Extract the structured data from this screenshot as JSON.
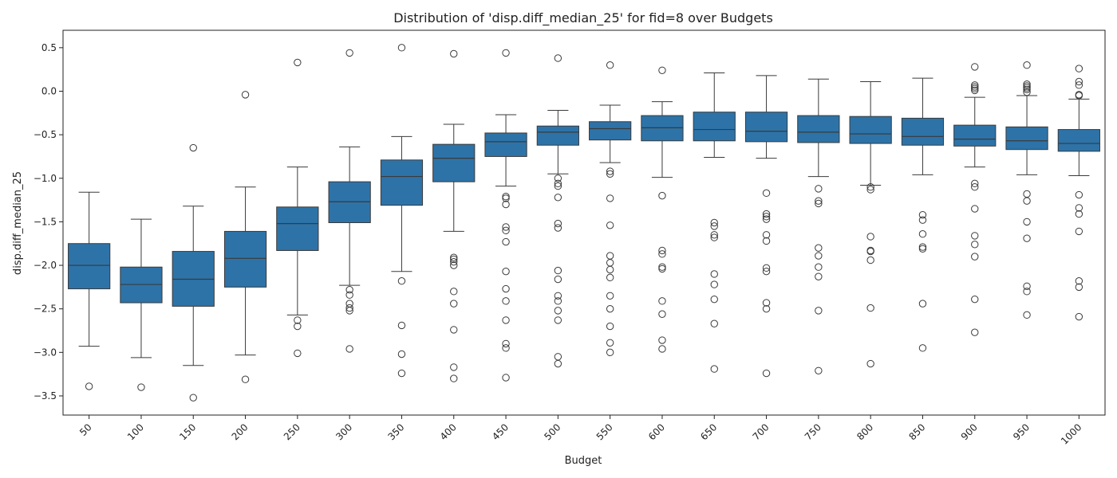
{
  "chart_data": {
    "type": "box",
    "title": "Distribution of 'disp.diff_median_25' for fid=8 over Budgets",
    "xlabel": "Budget",
    "ylabel": "disp.diff_median_25",
    "ylim": [
      -3.72,
      0.7
    ],
    "yticks": [
      0.5,
      0.0,
      -0.5,
      -1.0,
      -1.5,
      -2.0,
      -2.5,
      -3.0,
      -3.5
    ],
    "ytick_labels": [
      "0.5",
      "0.0",
      "−0.5",
      "−1.0",
      "−1.5",
      "−2.0",
      "−2.5",
      "−3.0",
      "−3.5"
    ],
    "grid": false,
    "legend": "none",
    "box_color": "#2d73a8",
    "line_color": "#3a3a3a",
    "categories": [
      "50",
      "100",
      "150",
      "200",
      "250",
      "300",
      "350",
      "400",
      "450",
      "500",
      "550",
      "600",
      "650",
      "700",
      "750",
      "800",
      "850",
      "900",
      "950",
      "1000"
    ],
    "boxes": [
      {
        "whisker_low": -2.93,
        "q1": -2.27,
        "median": -2.0,
        "q3": -1.75,
        "whisker_high": -1.16,
        "outliers": [
          -3.39
        ]
      },
      {
        "whisker_low": -3.06,
        "q1": -2.43,
        "median": -2.22,
        "q3": -2.02,
        "whisker_high": -1.47,
        "outliers": [
          -3.4
        ]
      },
      {
        "whisker_low": -3.15,
        "q1": -2.47,
        "median": -2.16,
        "q3": -1.84,
        "whisker_high": -1.32,
        "outliers": [
          -0.65,
          -3.52
        ]
      },
      {
        "whisker_low": -3.03,
        "q1": -2.25,
        "median": -1.92,
        "q3": -1.61,
        "whisker_high": -1.1,
        "outliers": [
          -0.04,
          -3.31
        ]
      },
      {
        "whisker_low": -2.57,
        "q1": -1.83,
        "median": -1.52,
        "q3": -1.33,
        "whisker_high": -0.87,
        "outliers": [
          0.33,
          -2.63,
          -2.7,
          -3.01
        ]
      },
      {
        "whisker_low": -2.23,
        "q1": -1.51,
        "median": -1.27,
        "q3": -1.04,
        "whisker_high": -0.64,
        "outliers": [
          0.44,
          -2.28,
          -2.34,
          -2.44,
          -2.49,
          -2.52,
          -2.96
        ]
      },
      {
        "whisker_low": -2.07,
        "q1": -1.31,
        "median": -0.98,
        "q3": -0.79,
        "whisker_high": -0.52,
        "outliers": [
          0.5,
          -2.18,
          -2.69,
          -3.02,
          -3.24
        ]
      },
      {
        "whisker_low": -1.61,
        "q1": -1.04,
        "median": -0.77,
        "q3": -0.61,
        "whisker_high": -0.38,
        "outliers": [
          0.43,
          -1.91,
          -1.93,
          -1.96,
          -2.0,
          -2.3,
          -2.44,
          -2.74,
          -3.17,
          -3.3
        ]
      },
      {
        "whisker_low": -1.09,
        "q1": -0.75,
        "median": -0.58,
        "q3": -0.48,
        "whisker_high": -0.27,
        "outliers": [
          0.44,
          -1.21,
          -1.23,
          -1.3,
          -1.56,
          -1.6,
          -1.73,
          -2.07,
          -2.27,
          -2.41,
          -2.63,
          -2.9,
          -2.95,
          -3.29
        ]
      },
      {
        "whisker_low": -0.95,
        "q1": -0.62,
        "median": -0.47,
        "q3": -0.4,
        "whisker_high": -0.22,
        "outliers": [
          0.38,
          -1.0,
          -1.06,
          -1.09,
          -1.22,
          -1.52,
          -1.57,
          -2.06,
          -2.16,
          -2.35,
          -2.41,
          -2.52,
          -2.63,
          -3.05,
          -3.13
        ]
      },
      {
        "whisker_low": -0.82,
        "q1": -0.56,
        "median": -0.43,
        "q3": -0.35,
        "whisker_high": -0.16,
        "outliers": [
          0.3,
          -0.92,
          -0.95,
          -1.23,
          -1.54,
          -1.89,
          -1.97,
          -2.05,
          -2.14,
          -2.35,
          -2.5,
          -2.7,
          -2.89,
          -3.0
        ]
      },
      {
        "whisker_low": -0.99,
        "q1": -0.57,
        "median": -0.42,
        "q3": -0.28,
        "whisker_high": -0.12,
        "outliers": [
          0.24,
          -1.2,
          -1.83,
          -1.87,
          -2.02,
          -2.04,
          -2.41,
          -2.56,
          -2.86,
          -2.96
        ]
      },
      {
        "whisker_low": -0.76,
        "q1": -0.57,
        "median": -0.44,
        "q3": -0.24,
        "whisker_high": 0.21,
        "outliers": [
          -1.51,
          -1.55,
          -1.65,
          -1.68,
          -2.1,
          -2.22,
          -2.39,
          -2.67,
          -3.19
        ]
      },
      {
        "whisker_low": -0.77,
        "q1": -0.58,
        "median": -0.46,
        "q3": -0.24,
        "whisker_high": 0.18,
        "outliers": [
          -1.17,
          -1.41,
          -1.44,
          -1.47,
          -1.65,
          -1.72,
          -2.03,
          -2.07,
          -2.43,
          -2.5,
          -3.24
        ]
      },
      {
        "whisker_low": -0.98,
        "q1": -0.59,
        "median": -0.47,
        "q3": -0.28,
        "whisker_high": 0.14,
        "outliers": [
          -1.12,
          -1.26,
          -1.29,
          -1.8,
          -1.89,
          -2.02,
          -2.13,
          -2.52,
          -3.21
        ]
      },
      {
        "whisker_low": -1.08,
        "q1": -0.6,
        "median": -0.49,
        "q3": -0.29,
        "whisker_high": 0.11,
        "outliers": [
          -1.1,
          -1.13,
          -1.67,
          -1.83,
          -1.84,
          -1.94,
          -2.49,
          -3.13
        ]
      },
      {
        "whisker_low": -0.96,
        "q1": -0.62,
        "median": -0.52,
        "q3": -0.31,
        "whisker_high": 0.15,
        "outliers": [
          -1.42,
          -1.48,
          -1.64,
          -1.79,
          -1.81,
          -2.44,
          -2.95
        ]
      },
      {
        "whisker_low": -0.87,
        "q1": -0.63,
        "median": -0.55,
        "q3": -0.39,
        "whisker_high": -0.07,
        "outliers": [
          0.28,
          0.07,
          0.05,
          0.03,
          0.01,
          -1.06,
          -1.1,
          -1.35,
          -1.66,
          -1.76,
          -1.9,
          -2.39,
          -2.77
        ]
      },
      {
        "whisker_low": -0.96,
        "q1": -0.67,
        "median": -0.57,
        "q3": -0.41,
        "whisker_high": -0.05,
        "outliers": [
          0.3,
          0.08,
          0.06,
          0.04,
          0.02,
          -0.01,
          -1.18,
          -1.26,
          -1.5,
          -1.69,
          -2.24,
          -2.3,
          -2.57
        ]
      },
      {
        "whisker_low": -0.97,
        "q1": -0.69,
        "median": -0.6,
        "q3": -0.44,
        "whisker_high": -0.09,
        "outliers": [
          0.26,
          0.11,
          0.07,
          -0.04,
          -0.05,
          -1.19,
          -1.34,
          -1.41,
          -1.61,
          -2.18,
          -2.25,
          -2.59
        ]
      }
    ]
  }
}
